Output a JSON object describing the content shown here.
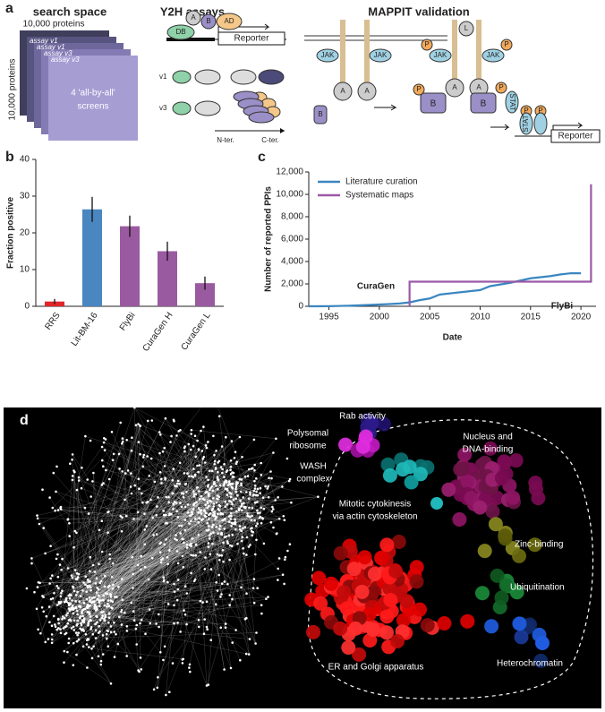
{
  "panel_a": {
    "label": "a",
    "search_title": "search space",
    "proteins_top": "10,000 proteins",
    "proteins_side": "10,000 proteins",
    "cards": [
      "assay v1",
      "assay v1",
      "assay v3",
      "assay v3"
    ],
    "screens": [
      "4 'all-by-all'",
      "screens"
    ],
    "y2h_title": "Y2H assays",
    "y2h_parts": [
      "A",
      "B",
      "AD",
      "DB",
      "Reporter",
      "v1",
      "v3",
      "N-ter.",
      "C-ter."
    ],
    "mappit_title": "MAPPIT validation",
    "mappit_parts": [
      "JAK",
      "JAK",
      "A",
      "A",
      "B",
      "L",
      "P",
      "JAK",
      "JAK",
      "P",
      "P",
      "A",
      "A",
      "B",
      "B",
      "P",
      "STAT",
      "P",
      "STAT",
      "P",
      "Reporter"
    ]
  },
  "chart_data": [
    {
      "type": "bar",
      "panel_label": "b",
      "ylabel": "Fraction positive",
      "categories": [
        "RRS",
        "Lit-BM-16",
        "FlyBi",
        "CuraGen H",
        "CuraGen L"
      ],
      "values": [
        1.3,
        26.4,
        21.8,
        15.0,
        6.3
      ],
      "errors": [
        0.7,
        3.4,
        2.9,
        2.6,
        1.8
      ],
      "colors": [
        "#e0262b",
        "#4a86bf",
        "#9a5aa0",
        "#9a5aa0",
        "#9a5aa0"
      ],
      "ylim": [
        0,
        40
      ],
      "yticks": [
        0,
        10,
        20,
        30,
        40
      ]
    },
    {
      "type": "line",
      "panel_label": "c",
      "xlabel": "Date",
      "ylabel": "Number of reported PPIs",
      "series": [
        {
          "name": "Literature curation",
          "color": "#3a86c0",
          "x": [
            1993,
            1995,
            1997,
            1999,
            2001,
            2002,
            2003,
            2004,
            2005,
            2006,
            2007,
            2008,
            2009,
            2010,
            2011,
            2012,
            2013,
            2014,
            2015,
            2016,
            2017,
            2018,
            2019,
            2020
          ],
          "values": [
            0,
            10,
            50,
            120,
            200,
            250,
            350,
            550,
            700,
            1050,
            1150,
            1250,
            1350,
            1450,
            1800,
            1950,
            2100,
            2300,
            2500,
            2600,
            2700,
            2850,
            2950,
            2950
          ]
        },
        {
          "name": "Systematic maps",
          "color": "#9b59a6",
          "x": [
            2003,
            2003,
            2021,
            2021
          ],
          "values": [
            0,
            2200,
            2200,
            10900
          ]
        }
      ],
      "annotations": [
        "CuraGen",
        "FlyBi"
      ],
      "xlim": [
        1993,
        2021.5
      ],
      "xticks": [
        1995,
        2000,
        2005,
        2010,
        2015,
        2020
      ],
      "ylim": [
        0,
        12000
      ],
      "yticks": [
        0,
        {
          "value": 2000,
          "label": "2,000"
        },
        {
          "value": 4000,
          "label": "4,000"
        },
        {
          "value": 6000,
          "label": "6,000"
        },
        {
          "value": 8000,
          "label": "8,000"
        },
        {
          "value": 10000,
          "label": "10,000"
        },
        {
          "value": 12000,
          "label": "12,000"
        }
      ]
    }
  ],
  "panel_d": {
    "label": "d",
    "annotations": [
      [
        "Rab activity"
      ],
      [
        "Polysomal",
        "ribosome"
      ],
      [
        "WASH",
        "complex"
      ],
      [
        "Mitotic cytokinesis",
        "via actin cytoskeleton"
      ],
      [
        "Nucleus and",
        "DNA-binding"
      ],
      [
        "Zinc-binding"
      ],
      [
        "Ubiquitination"
      ],
      [
        "Heterochromatin"
      ],
      [
        "ER and Golgi apparatus"
      ]
    ]
  }
}
